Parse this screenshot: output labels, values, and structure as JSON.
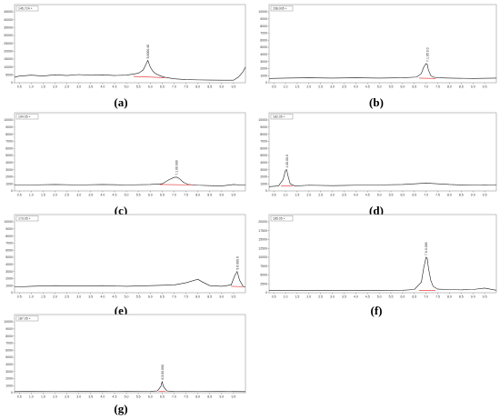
{
  "figure": {
    "panels": [
      {
        "id": "a",
        "tag": "(a)",
        "header": "145.724 +",
        "peak_label": "5.6000.40",
        "y_ticks": [
          "45000",
          "40000",
          "35000",
          "30000",
          "25000",
          "20000",
          "15000",
          "10000",
          "5000",
          "0"
        ],
        "x_ticks": [
          "0.5",
          "1.0",
          "1.5",
          "2.0",
          "2.5",
          "3.0",
          "3.5",
          "4.0",
          "4.5",
          "5.0",
          "5.5",
          "6.0",
          "6.5",
          "7.0",
          "7.5",
          "8.0",
          "8.5",
          "9.0",
          "9.5"
        ]
      },
      {
        "id": "b",
        "tag": "(b)",
        "header": "158.005 +",
        "peak_label": "7.1.05.0.0",
        "y_ticks": [
          "10000",
          "9000",
          "8000",
          "7000",
          "6000",
          "5000",
          "4000",
          "3000",
          "2000",
          "1000",
          "0"
        ],
        "x_ticks": [
          "0.5",
          "1.0",
          "1.5",
          "2.0",
          "2.5",
          "3.0",
          "3.5",
          "4.0",
          "4.5",
          "5.0",
          "5.5",
          "6.0",
          "6.5",
          "7.0",
          "7.5",
          "8.0",
          "8.5",
          "9.0",
          "9.5"
        ]
      },
      {
        "id": "c",
        "tag": "(c)",
        "header": "194.05 +",
        "peak_label": "7.1.00.000",
        "y_ticks": [
          "10000",
          "9000",
          "8000",
          "7000",
          "6000",
          "5000",
          "4000",
          "3000",
          "2000",
          "1000",
          "0"
        ],
        "x_ticks": [
          "0.5",
          "1.0",
          "1.5",
          "2.0",
          "2.5",
          "3.0",
          "3.5",
          "4.0",
          "4.5",
          "5.0",
          "5.5",
          "6.0",
          "6.5",
          "7.0",
          "7.5",
          "8.0",
          "8.5",
          "9.0",
          "9.5"
        ]
      },
      {
        "id": "d",
        "tag": "(d)",
        "header": "182.05 +",
        "peak_label": "1.00.00.0",
        "y_ticks": [
          "10000",
          "9000",
          "8000",
          "7000",
          "6000",
          "5000",
          "4000",
          "3000",
          "2000",
          "1000",
          "0"
        ],
        "x_ticks": [
          "0.5",
          "1.0",
          "1.5",
          "2.0",
          "2.5",
          "3.0",
          "3.5",
          "4.0",
          "4.5",
          "5.0",
          "5.5",
          "6.0",
          "6.5",
          "7.0",
          "7.5",
          "8.0",
          "8.5",
          "9.0",
          "9.5"
        ]
      },
      {
        "id": "e",
        "tag": "(e)",
        "header": "173.05 +",
        "peak_label": "9.6.000.0",
        "y_ticks": [
          "10000",
          "9000",
          "8000",
          "7000",
          "6000",
          "5000",
          "4000",
          "3000",
          "2000",
          "1000",
          "0"
        ],
        "x_ticks": [
          "0.5",
          "1.0",
          "1.5",
          "2.0",
          "2.5",
          "3.0",
          "3.5",
          "4.0",
          "4.5",
          "5.0",
          "5.5",
          "6.0",
          "6.5",
          "7.0",
          "7.5",
          "8.0",
          "8.5",
          "9.0",
          "9.5"
        ]
      },
      {
        "id": "f",
        "tag": "(f)",
        "header": "185.05 +",
        "peak_label": "7.0.0.000",
        "y_ticks": [
          "20000",
          "17500",
          "15000",
          "12500",
          "10000",
          "7500",
          "5000",
          "2500",
          "0"
        ],
        "x_ticks": [
          "0.5",
          "1.0",
          "1.5",
          "2.0",
          "2.5",
          "3.0",
          "3.5",
          "4.0",
          "4.5",
          "5.0",
          "5.5",
          "6.0",
          "6.5",
          "7.0",
          "7.5",
          "8.0",
          "8.5",
          "9.0",
          "9.5"
        ]
      },
      {
        "id": "g",
        "tag": "(g)",
        "header": "187.05 +",
        "peak_label": "6.3.00.000",
        "y_ticks": [
          "10000",
          "9000",
          "8000",
          "7000",
          "6000",
          "5000",
          "4000",
          "3000",
          "2000",
          "1000",
          "0"
        ],
        "x_ticks": [
          "0.5",
          "1.0",
          "1.5",
          "2.0",
          "2.5",
          "3.0",
          "3.5",
          "4.0",
          "4.5",
          "5.0",
          "5.5",
          "6.0",
          "6.5",
          "7.0",
          "7.5",
          "8.0",
          "8.5",
          "9.0",
          "9.5"
        ]
      }
    ]
  },
  "chart_data": [
    {
      "type": "line",
      "panel": "a",
      "xlim": [
        0.3,
        10
      ],
      "ylim": [
        0,
        45000
      ],
      "x": [
        0.3,
        0.5,
        1.0,
        1.5,
        2.0,
        2.5,
        3.0,
        3.5,
        4.0,
        4.5,
        5.0,
        5.5,
        5.7,
        5.8,
        5.9,
        6.0,
        6.1,
        6.2,
        6.4,
        6.6,
        7.0,
        7.5,
        8.0,
        8.5,
        9.0,
        9.5,
        9.7,
        9.9,
        10.0
      ],
      "y": [
        3500,
        4200,
        4800,
        4300,
        5000,
        4600,
        5200,
        4700,
        5000,
        4600,
        4800,
        6000,
        8000,
        11000,
        14200,
        10000,
        7500,
        6000,
        4500,
        3500,
        2500,
        2000,
        1800,
        1700,
        1600,
        1600,
        3500,
        7000,
        10000
      ],
      "peak_x": 5.9,
      "peak_y": 14200,
      "baseline": [
        [
          5.3,
          4000
        ],
        [
          6.6,
          3200
        ]
      ],
      "header": "145.724 +"
    },
    {
      "type": "line",
      "panel": "b",
      "xlim": [
        0.3,
        10
      ],
      "ylim": [
        0,
        10000
      ],
      "x": [
        0.3,
        1.0,
        2.0,
        3.0,
        4.0,
        5.0,
        6.0,
        6.6,
        6.8,
        6.9,
        7.0,
        7.05,
        7.1,
        7.2,
        7.3,
        7.5,
        8.0,
        9.0,
        10.0
      ],
      "y": [
        600,
        650,
        700,
        650,
        700,
        650,
        700,
        800,
        1300,
        2200,
        2700,
        2600,
        1800,
        1000,
        800,
        700,
        650,
        600,
        650
      ],
      "peak_x": 7.05,
      "peak_y": 2700,
      "baseline": [
        [
          6.7,
          650
        ],
        [
          7.4,
          600
        ]
      ],
      "header": "158.005 +"
    },
    {
      "type": "line",
      "panel": "c",
      "xlim": [
        0.3,
        10
      ],
      "ylim": [
        0,
        10000
      ],
      "x": [
        0.3,
        1.0,
        2.0,
        3.0,
        4.0,
        5.0,
        6.0,
        6.5,
        6.8,
        7.0,
        7.1,
        7.2,
        7.4,
        7.6,
        8.0,
        8.5,
        9.0,
        9.5,
        10.0
      ],
      "y": [
        800,
        850,
        900,
        850,
        900,
        850,
        900,
        1000,
        1600,
        1900,
        1950,
        1800,
        1200,
        900,
        800,
        750,
        700,
        900,
        800
      ],
      "peak_x": 7.1,
      "peak_y": 1950,
      "baseline": [
        [
          6.4,
          900
        ],
        [
          7.8,
          850
        ]
      ],
      "header": "194.05 +"
    },
    {
      "type": "line",
      "panel": "d",
      "xlim": [
        0.3,
        10
      ],
      "ylim": [
        0,
        10000
      ],
      "x": [
        0.3,
        0.7,
        0.9,
        1.0,
        1.05,
        1.1,
        1.2,
        1.4,
        2.0,
        3.0,
        4.0,
        5.0,
        6.0,
        6.5,
        7.0,
        7.5,
        8.0,
        9.0,
        9.5,
        10.0
      ],
      "y": [
        600,
        700,
        1600,
        2900,
        3000,
        2200,
        1000,
        700,
        800,
        750,
        800,
        850,
        900,
        1000,
        1100,
        1000,
        900,
        800,
        850,
        800
      ],
      "peak_x": 1.05,
      "peak_y": 3000,
      "baseline": [
        [
          0.8,
          700
        ],
        [
          1.3,
          700
        ]
      ],
      "header": "182.05 +"
    },
    {
      "type": "line",
      "panel": "e",
      "xlim": [
        0.3,
        10
      ],
      "ylim": [
        0,
        10000
      ],
      "x": [
        0.3,
        1.0,
        2.0,
        3.0,
        4.0,
        5.0,
        6.0,
        7.0,
        7.5,
        8.0,
        8.2,
        8.5,
        9.0,
        9.4,
        9.55,
        9.65,
        9.75,
        9.9,
        10.0
      ],
      "y": [
        800,
        900,
        1000,
        950,
        1000,
        900,
        1000,
        1100,
        1400,
        1900,
        1500,
        1000,
        900,
        1100,
        2400,
        3000,
        1800,
        900,
        800
      ],
      "peak_x": 9.65,
      "peak_y": 3000,
      "baseline": [
        [
          9.4,
          900
        ],
        [
          9.9,
          850
        ]
      ],
      "header": "173.05 +"
    },
    {
      "type": "line",
      "panel": "f",
      "xlim": [
        0.3,
        10
      ],
      "ylim": [
        0,
        20000
      ],
      "x": [
        0.3,
        1.0,
        2.0,
        3.0,
        4.0,
        5.0,
        6.0,
        6.5,
        6.8,
        6.9,
        7.0,
        7.05,
        7.1,
        7.2,
        7.3,
        7.5,
        8.0,
        8.5,
        9.0,
        9.5,
        10.0
      ],
      "y": [
        600,
        650,
        700,
        650,
        700,
        650,
        700,
        900,
        3000,
        7000,
        10000,
        9700,
        7000,
        3500,
        1800,
        1000,
        900,
        800,
        900,
        1300,
        700
      ],
      "peak_x": 7.0,
      "peak_y": 10000,
      "baseline": [
        [
          6.7,
          700
        ],
        [
          7.4,
          650
        ]
      ],
      "header": "185.05 +"
    },
    {
      "type": "line",
      "panel": "g",
      "xlim": [
        0.3,
        10
      ],
      "ylim": [
        0,
        10000
      ],
      "x": [
        0.3,
        1.0,
        2.0,
        3.0,
        4.0,
        5.0,
        6.0,
        6.3,
        6.45,
        6.5,
        6.55,
        6.7,
        7.0,
        8.0,
        9.0,
        10.0
      ],
      "y": [
        150,
        180,
        160,
        200,
        170,
        180,
        200,
        250,
        900,
        1600,
        900,
        250,
        180,
        160,
        170,
        150
      ],
      "peak_x": 6.5,
      "peak_y": 1600,
      "baseline": [
        [
          6.35,
          200
        ],
        [
          6.65,
          200
        ]
      ],
      "header": "187.05 +"
    }
  ]
}
